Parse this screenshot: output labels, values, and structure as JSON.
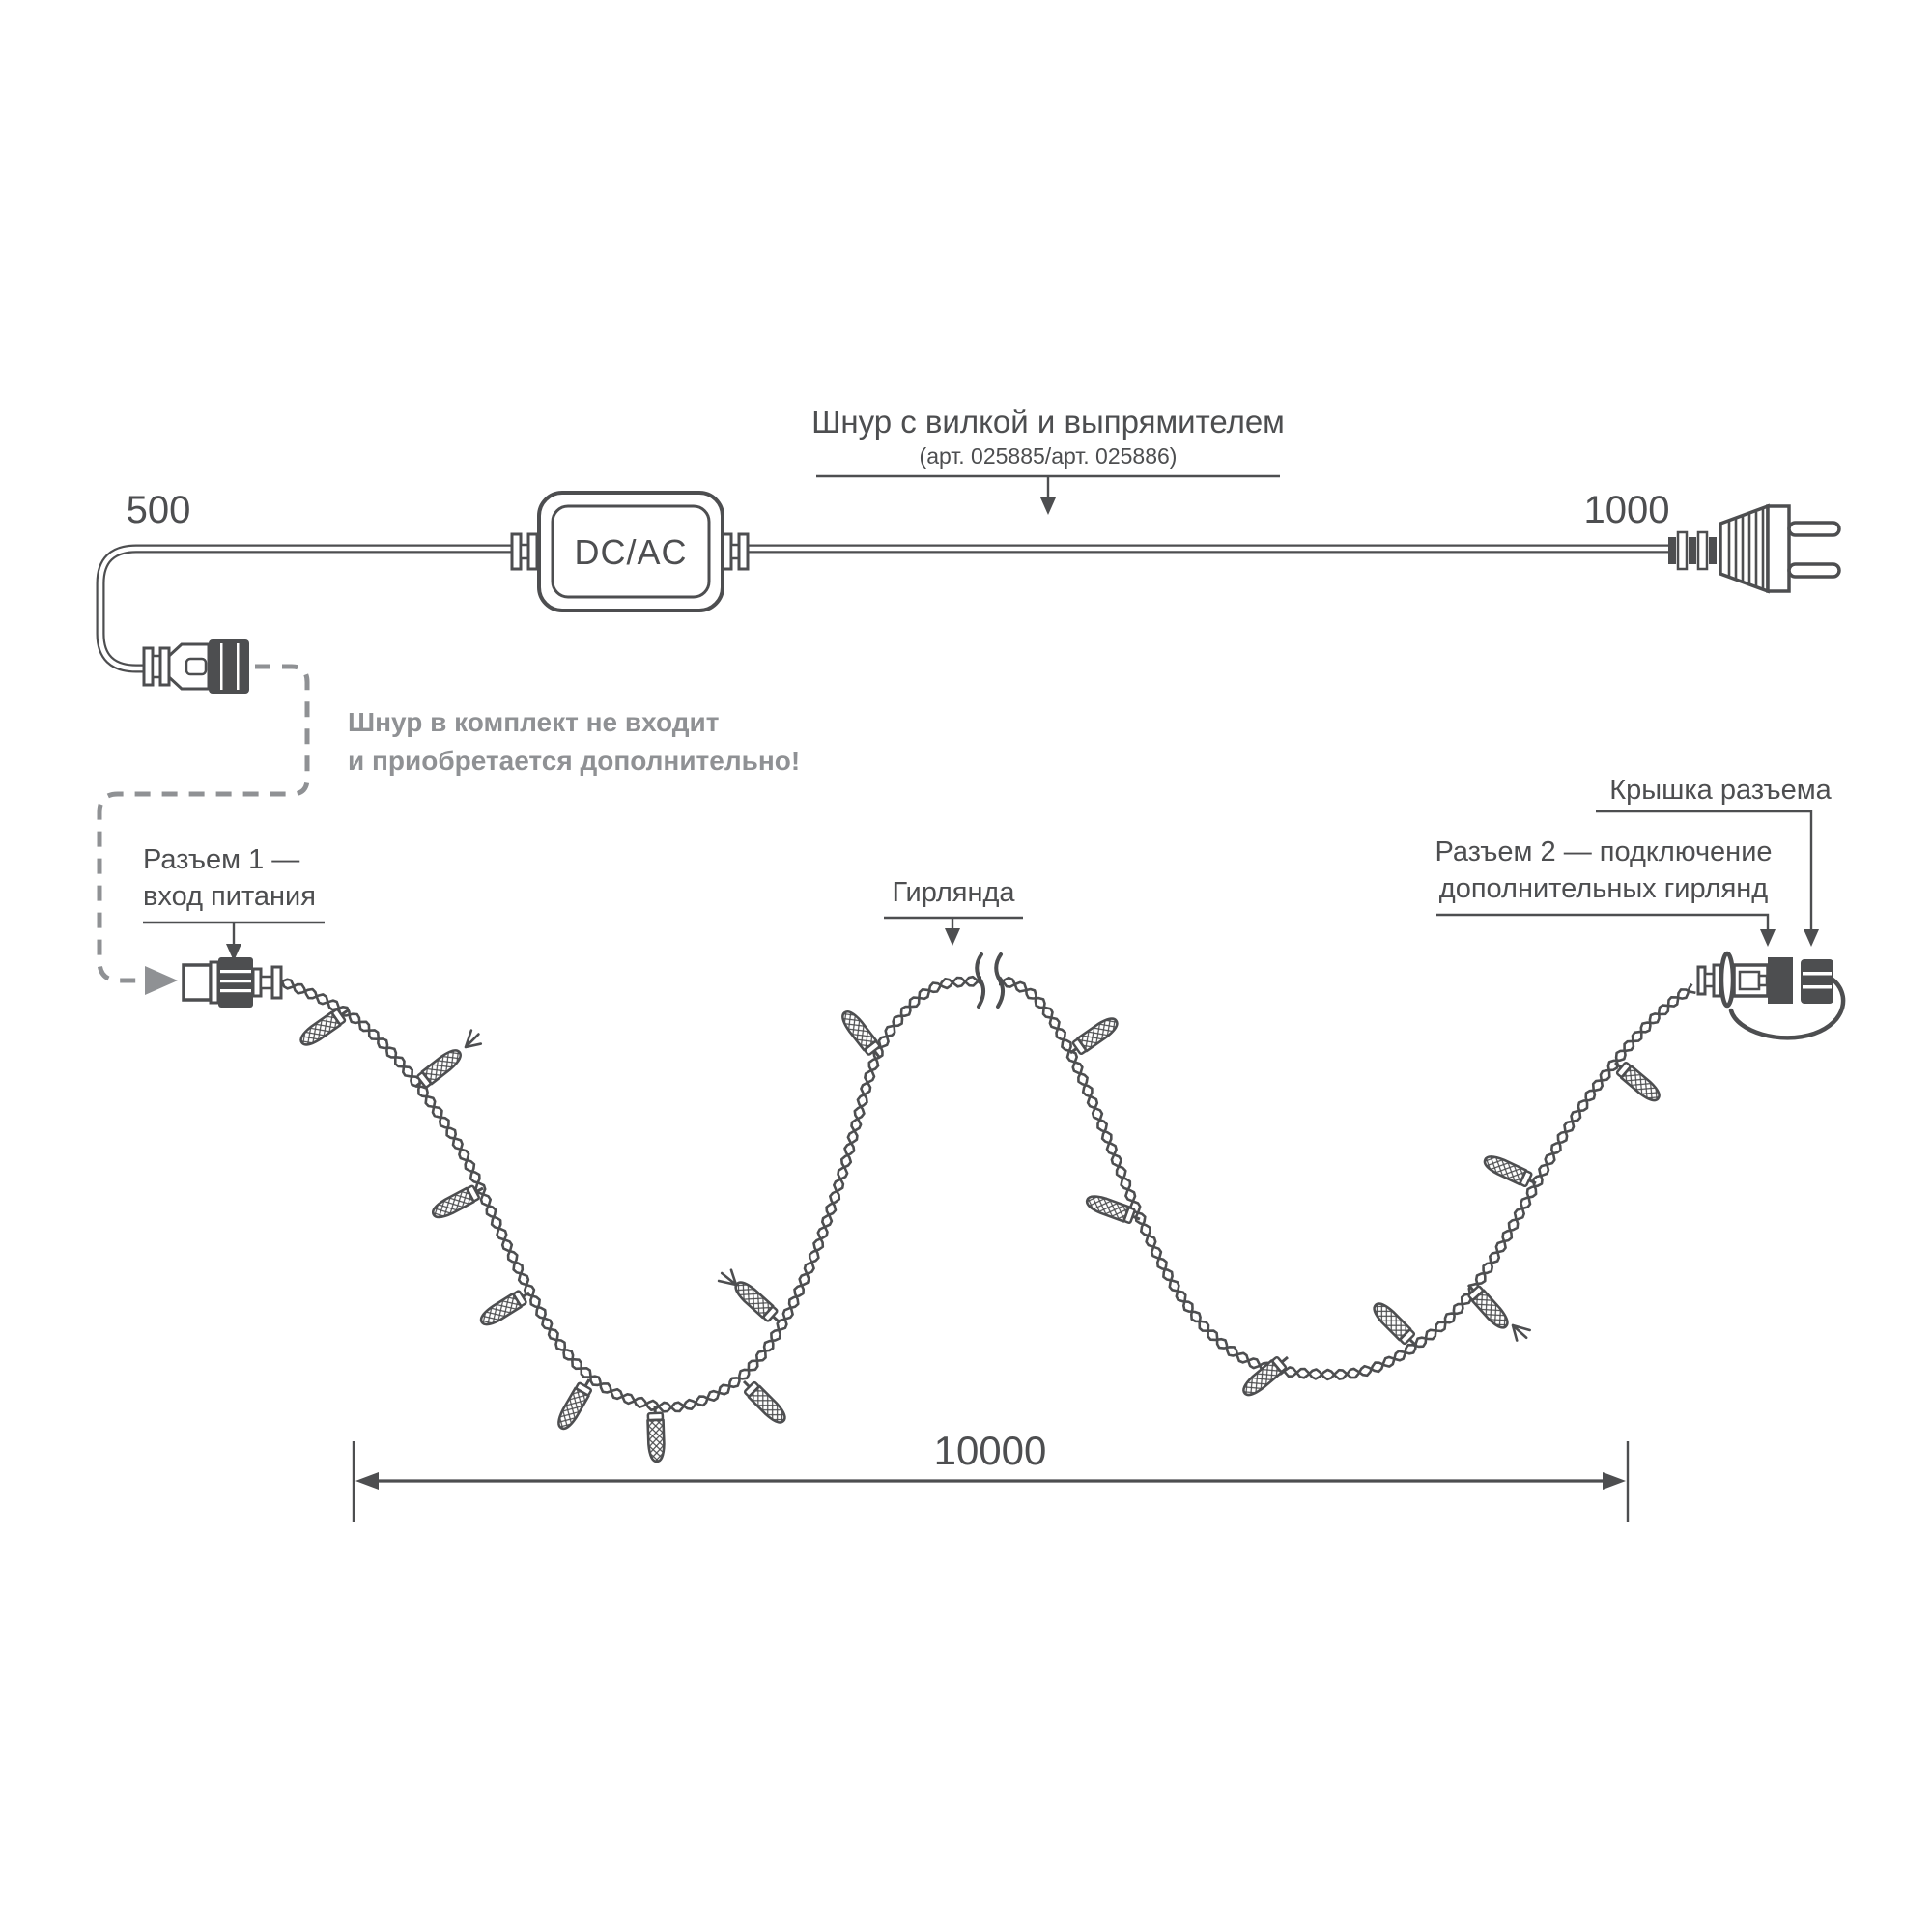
{
  "title": {
    "text": "Шнур с вилкой и выпрямителем",
    "subtitle": "(арт. 025885/арт. 025886)"
  },
  "adapter": {
    "label": "DC/AC"
  },
  "dimensions": {
    "cord_left_mm": "500",
    "cord_right_mm": "1000",
    "garland_mm": "10000"
  },
  "note": {
    "line1": "Шнур в комплект не входит",
    "line2": "и приобретается дополнительно!"
  },
  "callouts": {
    "connector1_line1": "Разъем 1 —",
    "connector1_line2": "вход питания",
    "garland": "Гирлянда",
    "cap": "Крышка разъема",
    "connector2_line1": "Разъем 2 — подключение",
    "connector2_line2": "дополнительных гирлянд"
  },
  "colors": {
    "ink": "#4d4e50",
    "muted": "#8f9194",
    "background": "#ffffff"
  }
}
